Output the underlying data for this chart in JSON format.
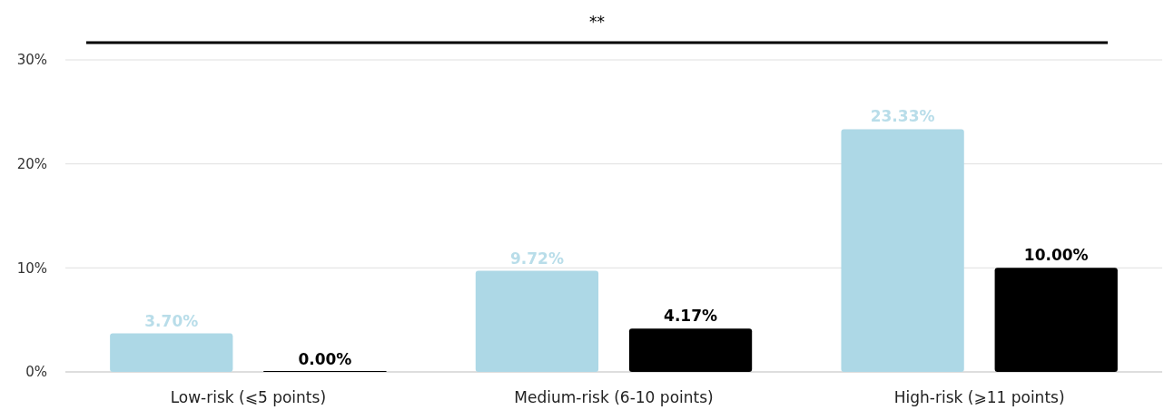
{
  "chart_data": {
    "type": "bar",
    "categories": [
      "Low-risk (⩽5 points)",
      "Medium-risk (6-10 points)",
      "High-risk (⩾11 points)"
    ],
    "series": [
      {
        "color": "#add8e6",
        "values": [
          3.7,
          9.72,
          23.33
        ],
        "value_labels": [
          "3.70%",
          "9.72%",
          "23.33%"
        ]
      },
      {
        "color": "#000000",
        "values": [
          0.0,
          4.17,
          10.0
        ],
        "value_labels": [
          "0.00%",
          "4.17%",
          "10.00%"
        ]
      }
    ],
    "ylim": [
      0,
      30
    ],
    "yticks": [
      {
        "value": 0,
        "label": "0%"
      },
      {
        "value": 10,
        "label": "10%"
      },
      {
        "value": 20,
        "label": "20%"
      },
      {
        "value": 30,
        "label": "30%"
      }
    ],
    "grid": "y",
    "annotations": [
      "**"
    ]
  }
}
